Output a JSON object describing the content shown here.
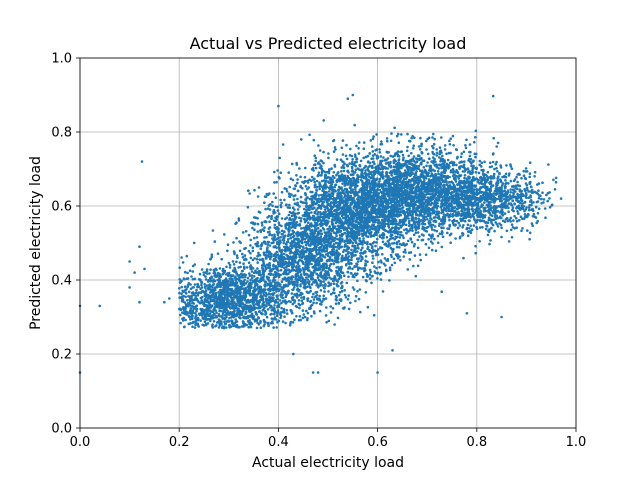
{
  "chart_data": {
    "type": "scatter",
    "title": "Actual vs Predicted electricity load",
    "xlabel": "Actual electricity load",
    "ylabel": "Predicted electricity load",
    "xlim": [
      0,
      1
    ],
    "ylim": [
      0,
      1
    ],
    "xticks": [
      "0.0",
      "0.2",
      "0.4",
      "0.6",
      "0.8",
      "1.0"
    ],
    "yticks": [
      "0.0",
      "0.2",
      "0.4",
      "0.6",
      "0.8",
      "1.0"
    ],
    "grid": true,
    "color": "#1f77b4",
    "clusters": [
      {
        "cx": 0.3,
        "cy": 0.35,
        "sx": 0.055,
        "sy": 0.045,
        "n": 1400
      },
      {
        "cx": 0.45,
        "cy": 0.45,
        "sx": 0.06,
        "sy": 0.07,
        "n": 1500
      },
      {
        "cx": 0.55,
        "cy": 0.58,
        "sx": 0.07,
        "sy": 0.07,
        "n": 2000
      },
      {
        "cx": 0.68,
        "cy": 0.64,
        "sx": 0.08,
        "sy": 0.06,
        "n": 2200
      },
      {
        "cx": 0.82,
        "cy": 0.62,
        "sx": 0.06,
        "sy": 0.04,
        "n": 800
      }
    ],
    "outliers": [
      {
        "x": 0.0,
        "y": 0.33
      },
      {
        "x": 0.0,
        "y": 0.15
      },
      {
        "x": 0.04,
        "y": 0.33
      },
      {
        "x": 0.1,
        "y": 0.45
      },
      {
        "x": 0.11,
        "y": 0.42
      },
      {
        "x": 0.12,
        "y": 0.49
      },
      {
        "x": 0.125,
        "y": 0.72
      },
      {
        "x": 0.13,
        "y": 0.43
      },
      {
        "x": 0.1,
        "y": 0.38
      },
      {
        "x": 0.17,
        "y": 0.34
      },
      {
        "x": 0.18,
        "y": 0.35
      },
      {
        "x": 0.6,
        "y": 0.15
      },
      {
        "x": 0.47,
        "y": 0.15
      },
      {
        "x": 0.48,
        "y": 0.15
      },
      {
        "x": 0.43,
        "y": 0.2
      },
      {
        "x": 0.63,
        "y": 0.21
      },
      {
        "x": 0.4,
        "y": 0.87
      },
      {
        "x": 0.54,
        "y": 0.89
      },
      {
        "x": 0.55,
        "y": 0.9
      },
      {
        "x": 0.97,
        "y": 0.62
      },
      {
        "x": 0.9,
        "y": 0.63
      },
      {
        "x": 0.78,
        "y": 0.31
      },
      {
        "x": 0.85,
        "y": 0.3
      },
      {
        "x": 0.12,
        "y": 0.34
      }
    ]
  }
}
